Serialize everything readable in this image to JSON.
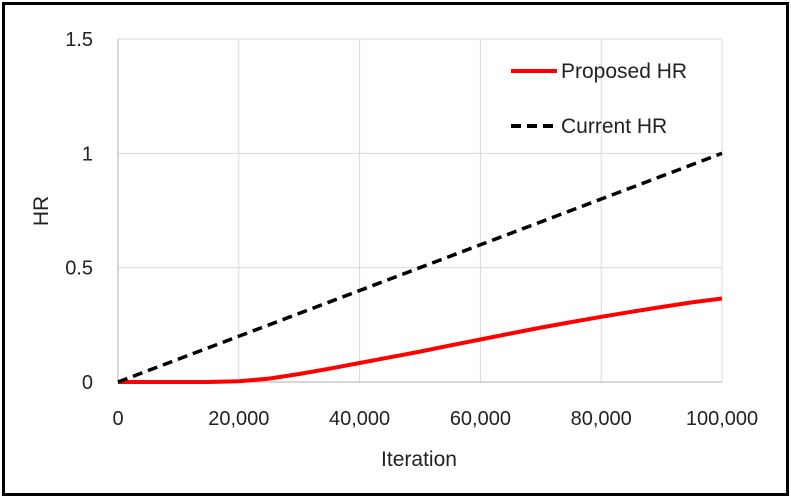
{
  "chart_data": {
    "type": "line",
    "title": "",
    "xlabel": "Iteration",
    "ylabel": "HR",
    "xlim": [
      0,
      100000
    ],
    "ylim": [
      0,
      1.5
    ],
    "x_ticks": [
      0,
      20000,
      40000,
      60000,
      80000,
      100000
    ],
    "x_tick_labels": [
      "0",
      "20,000",
      "40,000",
      "60,000",
      "80,000",
      "100,000"
    ],
    "y_ticks": [
      0,
      0.5,
      1,
      1.5
    ],
    "y_tick_labels": [
      "0",
      "0.5",
      "1",
      "1.5"
    ],
    "grid": true,
    "legend_position": "top-right",
    "series": [
      {
        "name": "Proposed HR",
        "color": "#ff0000",
        "style": "solid",
        "x": [
          0,
          5000,
          10000,
          15000,
          20000,
          25000,
          30000,
          35000,
          40000,
          45000,
          50000,
          55000,
          60000,
          65000,
          70000,
          75000,
          80000,
          85000,
          90000,
          95000,
          100000
        ],
        "y": [
          0,
          0,
          0,
          0,
          0.003,
          0.015,
          0.035,
          0.058,
          0.083,
          0.108,
          0.133,
          0.16,
          0.186,
          0.212,
          0.238,
          0.262,
          0.285,
          0.307,
          0.328,
          0.348,
          0.365
        ]
      },
      {
        "name": "Current HR",
        "color": "#000000",
        "style": "dashed",
        "x": [
          0,
          100000
        ],
        "y": [
          0,
          1
        ]
      }
    ]
  }
}
